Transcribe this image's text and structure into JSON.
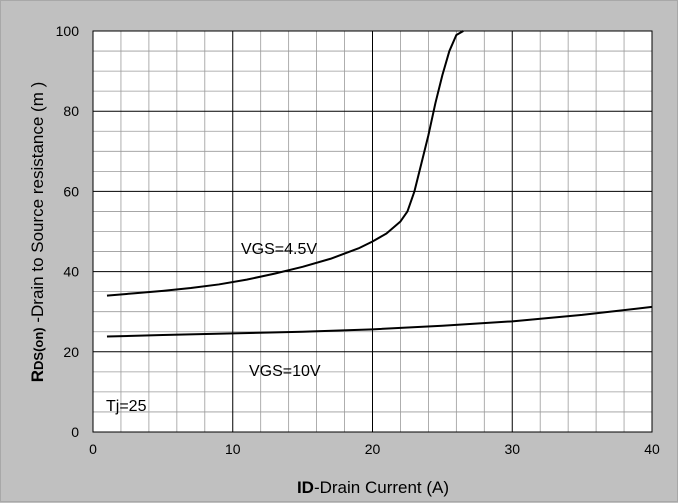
{
  "chart_data": {
    "type": "line",
    "title": "",
    "xlabel": {
      "bold_part": "ID",
      "rest": "-Drain Current  (A)"
    },
    "ylabel": {
      "bold_part": "R",
      "subscript_part": "DS(on)",
      "rest": " -Drain to Source resistance  (m   )"
    },
    "xlim": [
      0,
      40
    ],
    "ylim": [
      0,
      100
    ],
    "xticks": [
      0,
      10,
      20,
      30,
      40
    ],
    "yticks": [
      0,
      20,
      40,
      60,
      80,
      100
    ],
    "grid": true,
    "series": [
      {
        "name": "VGS=4.5V",
        "color": "#000000",
        "x": [
          1,
          3,
          5,
          7,
          9,
          11,
          13,
          15,
          17,
          19,
          20,
          21,
          22,
          22.5,
          23,
          23.5,
          24,
          24.5,
          25,
          25.5,
          26,
          26.5
        ],
        "y": [
          34,
          34.6,
          35.2,
          35.9,
          36.8,
          38,
          39.5,
          41.2,
          43.2,
          45.8,
          47.5,
          49.5,
          52.5,
          55,
          60,
          67,
          74,
          82,
          89,
          95,
          99,
          100
        ]
      },
      {
        "name": "VGS=10V",
        "color": "#000000",
        "x": [
          1,
          5,
          10,
          15,
          20,
          25,
          30,
          35,
          40
        ],
        "y": [
          23.8,
          24.2,
          24.6,
          25.0,
          25.6,
          26.5,
          27.6,
          29.2,
          31.2
        ]
      }
    ],
    "annotations": [
      {
        "text": "VGS=4.5V"
      },
      {
        "text": "VGS=10V"
      },
      {
        "text": "Tj=25"
      }
    ]
  }
}
